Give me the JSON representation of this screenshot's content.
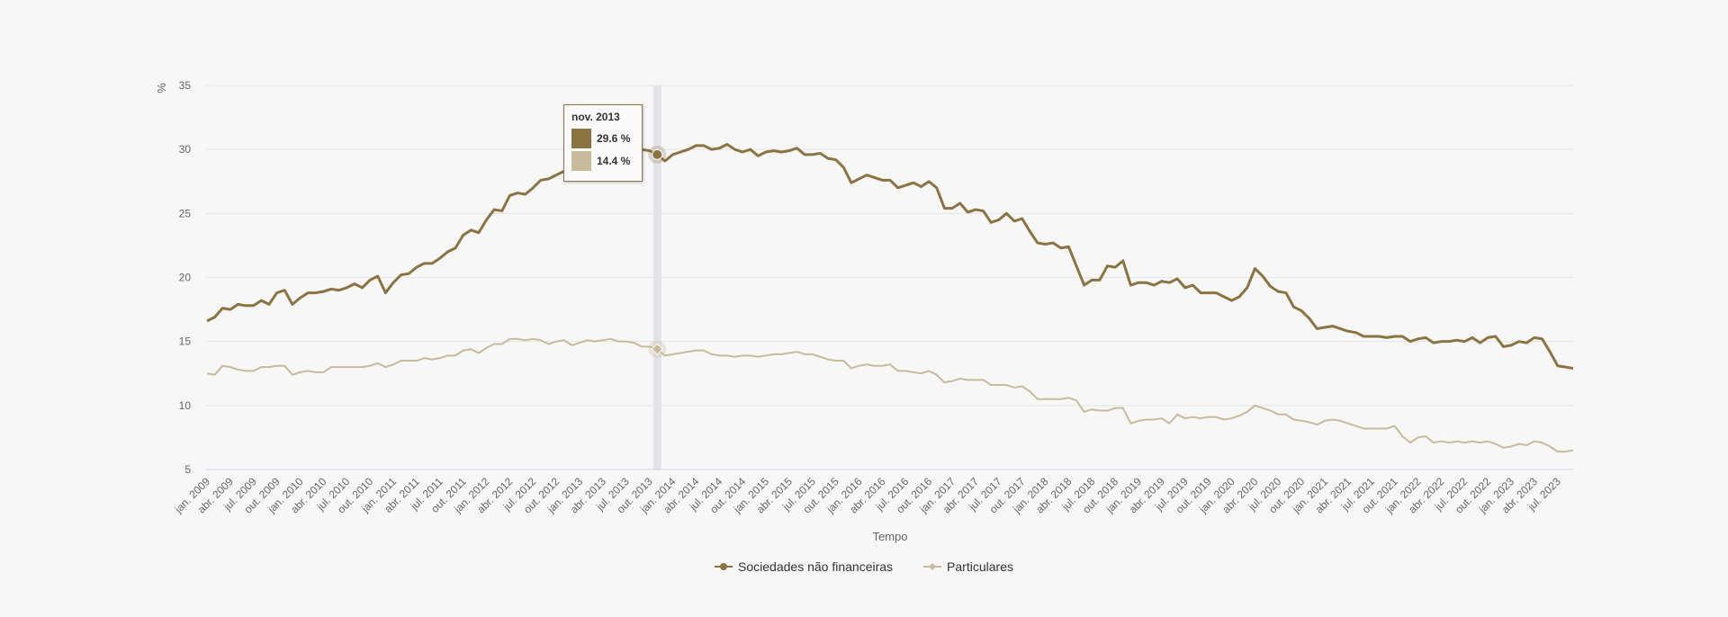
{
  "colors": {
    "series1": "#8b7442",
    "series2": "#c8bb9c",
    "grid": "#e6e6e6",
    "crosshair": "#e3e3ea"
  },
  "tooltip": {
    "title": "nov. 2013",
    "rows": [
      {
        "value": "29.6 %",
        "color": "#8b7442"
      },
      {
        "value": "14.4 %",
        "color": "#c8bb9c"
      }
    ]
  },
  "chart_data": {
    "type": "line",
    "xlabel": "Tempo",
    "ylabel": "%",
    "ylim": [
      5,
      35
    ],
    "yticks": [
      5,
      10,
      15,
      20,
      25,
      30,
      35
    ],
    "grid": true,
    "legend": "bottom-center",
    "x_start": "jan. 2009",
    "x_end": "out. 2023",
    "xtick_labels": [
      "jan. 2009",
      "abr. 2009",
      "jul. 2009",
      "out. 2009",
      "jan. 2010",
      "abr. 2010",
      "jul. 2010",
      "out. 2010",
      "jan. 2011",
      "abr. 2011",
      "jul. 2011",
      "out. 2011",
      "jan. 2012",
      "abr. 2012",
      "jul. 2012",
      "out. 2012",
      "jan. 2013",
      "abr. 2013",
      "jul. 2013",
      "out. 2013",
      "jan. 2014",
      "abr. 2014",
      "jul. 2014",
      "out. 2014",
      "jan. 2015",
      "abr. 2015",
      "jul. 2015",
      "out. 2015",
      "jan. 2016",
      "abr. 2016",
      "jul. 2016",
      "out. 2016",
      "jan. 2017",
      "abr. 2017",
      "jul. 2017",
      "out. 2017",
      "jan. 2018",
      "abr. 2018",
      "jul. 2018",
      "out. 2018",
      "jan. 2019",
      "abr. 2019",
      "jul. 2019",
      "out. 2019",
      "jan. 2020",
      "abr. 2020",
      "jul. 2020",
      "out. 2020",
      "jan. 2021",
      "abr. 2021",
      "jul. 2021",
      "out. 2021",
      "jan. 2022",
      "abr. 2022",
      "jul. 2022",
      "out. 2022",
      "jan. 2023",
      "abr. 2023",
      "jul. 2023"
    ],
    "highlight": {
      "label": "nov. 2013",
      "index": 58
    },
    "series": [
      {
        "name": "Sociedades não financeiras",
        "color": "#8b7442",
        "values": [
          16.6,
          16.9,
          17.6,
          17.5,
          17.9,
          17.8,
          17.8,
          18.2,
          17.9,
          18.8,
          19.0,
          17.9,
          18.4,
          18.8,
          18.8,
          18.9,
          19.1,
          19.0,
          19.2,
          19.5,
          19.2,
          19.8,
          20.1,
          18.8,
          19.6,
          20.2,
          20.3,
          20.8,
          21.1,
          21.1,
          21.5,
          22.0,
          22.3,
          23.3,
          23.7,
          23.5,
          24.5,
          25.3,
          25.2,
          26.4,
          26.6,
          26.5,
          27.0,
          27.6,
          27.7,
          28.0,
          28.3,
          28.6,
          28.9,
          29.1,
          29.3,
          29.5,
          29.7,
          29.8,
          29.9,
          29.9,
          30.0,
          29.9,
          29.6,
          29.1,
          29.6,
          29.8,
          30.0,
          30.3,
          30.3,
          30.0,
          30.1,
          30.4,
          30.0,
          29.8,
          30.0,
          29.5,
          29.8,
          29.9,
          29.8,
          29.9,
          30.1,
          29.6,
          29.6,
          29.7,
          29.3,
          29.2,
          28.6,
          27.4,
          27.7,
          28.0,
          27.8,
          27.6,
          27.6,
          27.0,
          27.2,
          27.4,
          27.1,
          27.5,
          27.0,
          25.4,
          25.4,
          25.8,
          25.1,
          25.3,
          25.2,
          24.3,
          24.5,
          25.0,
          24.4,
          24.6,
          23.6,
          22.7,
          22.6,
          22.7,
          22.3,
          22.4,
          20.9,
          19.4,
          19.8,
          19.8,
          20.9,
          20.8,
          21.3,
          19.4,
          19.6,
          19.6,
          19.4,
          19.7,
          19.6,
          19.9,
          19.2,
          19.4,
          18.8,
          18.8,
          18.8,
          18.5,
          18.2,
          18.5,
          19.2,
          20.7,
          20.1,
          19.3,
          18.9,
          18.8,
          17.7,
          17.4,
          16.8,
          16.0,
          16.1,
          16.2,
          16.0,
          15.8,
          15.7,
          15.4,
          15.4,
          15.4,
          15.3,
          15.4,
          15.4,
          15.0,
          15.2,
          15.3,
          14.9,
          15.0,
          15.0,
          15.1,
          15.0,
          15.3,
          14.9,
          15.3,
          15.4,
          14.6,
          14.7,
          15.0,
          14.9,
          15.3,
          15.2,
          14.2,
          13.1,
          13.0,
          12.9
        ]
      },
      {
        "name": "Particulares",
        "color": "#c8bb9c",
        "values": [
          12.5,
          12.4,
          13.1,
          13.0,
          12.8,
          12.7,
          12.7,
          13.0,
          13.0,
          13.1,
          13.1,
          12.4,
          12.6,
          12.7,
          12.6,
          12.6,
          13.0,
          13.0,
          13.0,
          13.0,
          13.0,
          13.1,
          13.3,
          13.0,
          13.2,
          13.5,
          13.5,
          13.5,
          13.7,
          13.6,
          13.7,
          13.9,
          13.9,
          14.3,
          14.4,
          14.1,
          14.5,
          14.8,
          14.8,
          15.2,
          15.2,
          15.1,
          15.2,
          15.1,
          14.8,
          15.0,
          15.1,
          14.7,
          14.9,
          15.1,
          15.0,
          15.1,
          15.2,
          15.0,
          15.0,
          14.9,
          14.6,
          14.6,
          14.4,
          13.9,
          14.0,
          14.1,
          14.2,
          14.3,
          14.3,
          14.0,
          13.9,
          13.9,
          13.8,
          13.9,
          13.9,
          13.8,
          13.9,
          14.0,
          14.0,
          14.1,
          14.2,
          14.0,
          14.0,
          13.8,
          13.6,
          13.5,
          13.5,
          12.9,
          13.1,
          13.2,
          13.1,
          13.1,
          13.2,
          12.7,
          12.7,
          12.6,
          12.5,
          12.7,
          12.4,
          11.8,
          11.9,
          12.1,
          12.0,
          12.0,
          12.0,
          11.6,
          11.6,
          11.6,
          11.4,
          11.5,
          11.1,
          10.5,
          10.5,
          10.5,
          10.5,
          10.6,
          10.4,
          9.5,
          9.7,
          9.6,
          9.6,
          9.8,
          9.8,
          8.6,
          8.8,
          8.9,
          8.9,
          9.0,
          8.6,
          9.3,
          9.0,
          9.1,
          9.0,
          9.1,
          9.1,
          8.9,
          9.0,
          9.2,
          9.5,
          10.0,
          9.8,
          9.6,
          9.3,
          9.3,
          8.9,
          8.8,
          8.7,
          8.5,
          8.8,
          8.9,
          8.8,
          8.6,
          8.4,
          8.2,
          8.2,
          8.2,
          8.2,
          8.4,
          7.6,
          7.1,
          7.5,
          7.6,
          7.1,
          7.2,
          7.1,
          7.2,
          7.1,
          7.2,
          7.1,
          7.2,
          7.0,
          6.7,
          6.8,
          7.0,
          6.9,
          7.2,
          7.1,
          6.8,
          6.4,
          6.4,
          6.5
        ]
      }
    ]
  }
}
